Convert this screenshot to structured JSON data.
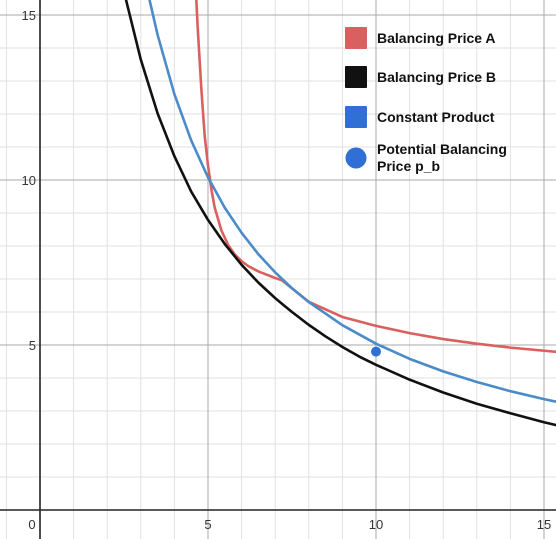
{
  "chart_data": {
    "type": "line",
    "title": "",
    "xlabel": "",
    "ylabel": "",
    "xlim": [
      -1,
      15.5
    ],
    "ylim": [
      -0.5,
      15.5
    ],
    "grid": true,
    "legend_position": "top-right",
    "x_ticks": [
      0,
      5,
      10,
      15
    ],
    "y_ticks": [
      5,
      10,
      15
    ],
    "x_tick_labels": [
      "0",
      "5",
      "10",
      "15"
    ],
    "y_tick_labels": [
      "5",
      "10",
      "15"
    ],
    "series": [
      {
        "name": "Balancing Price A",
        "color": "#d9605f",
        "x": [
          4.65,
          4.7,
          4.8,
          4.9,
          5.0,
          5.1,
          5.2,
          5.4,
          5.6,
          5.8,
          6.0,
          6.2,
          6.5,
          7.0,
          7.2,
          8,
          9,
          10,
          11,
          12,
          13,
          14,
          15.5
        ],
        "y": [
          15.5,
          14.5,
          12.79,
          11.35,
          10.44,
          9.72,
          9.16,
          8.47,
          8.03,
          7.74,
          7.54,
          7.39,
          7.23,
          7.03,
          6.96,
          6.31,
          5.85,
          5.58,
          5.36,
          5.18,
          5.04,
          4.92,
          4.78
        ]
      },
      {
        "name": "Balancing Price B",
        "color": "#111111",
        "x": [
          2.55,
          3,
          3.5,
          4,
          4.5,
          5,
          5.5,
          6,
          6.5,
          7,
          7.2,
          7.5,
          8,
          8.5,
          9,
          9.5,
          10,
          11,
          12,
          13,
          14,
          15,
          15.5
        ],
        "y": [
          15.5,
          13.65,
          12.02,
          10.72,
          9.65,
          8.79,
          8.06,
          7.43,
          6.89,
          6.42,
          6.25,
          6.0,
          5.61,
          5.26,
          4.94,
          4.65,
          4.4,
          3.95,
          3.56,
          3.22,
          2.93,
          2.66,
          2.54
        ]
      },
      {
        "name": "Constant Product",
        "color": "#4a8bc8",
        "x": [
          3.25,
          3.5,
          4,
          4.5,
          5,
          5.5,
          6,
          6.5,
          7,
          7.5,
          8,
          9,
          10,
          11,
          12,
          13,
          14,
          15,
          15.5
        ],
        "y": [
          15.5,
          14.4,
          12.6,
          11.2,
          10.08,
          9.16,
          8.4,
          7.75,
          7.2,
          6.72,
          6.3,
          5.6,
          5.04,
          4.58,
          4.2,
          3.88,
          3.6,
          3.36,
          3.25
        ]
      }
    ],
    "points": [
      {
        "name": "Potential Balancing Price p_b",
        "color": "#2f6fd6",
        "x": 10.0,
        "y": 4.8
      }
    ],
    "legend": [
      {
        "label": "Balancing Price A",
        "color": "#d9605f",
        "marker": "square"
      },
      {
        "label": "Balancing Price B",
        "color": "#111111",
        "marker": "square"
      },
      {
        "label": "Constant Product",
        "color": "#2f6fd6",
        "marker": "square"
      },
      {
        "label": "Potential Balancing Price p_b",
        "color": "#2f6fd6",
        "marker": "circle"
      }
    ]
  }
}
